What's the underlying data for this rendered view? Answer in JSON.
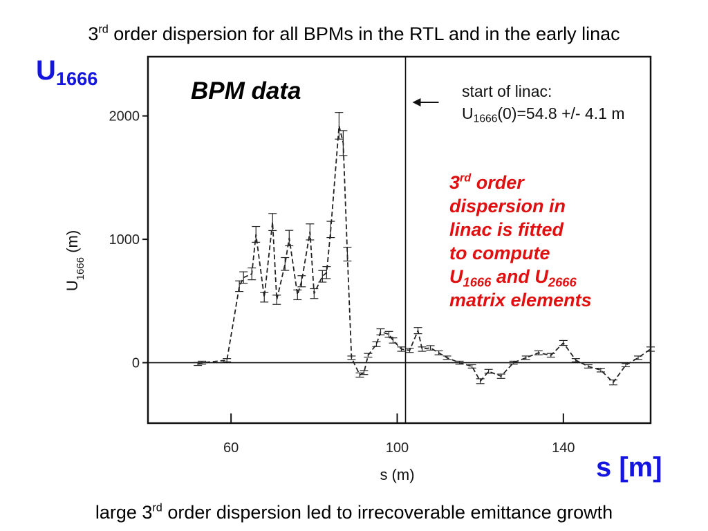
{
  "slide": {
    "title_pre": "3",
    "title_sup": "rd",
    "title_post": " order dispersion for all BPMs in the RTL and in the early linac",
    "caption_pre": "large 3",
    "caption_sup": "rd",
    "caption_post": " order dispersion led to irrecoverable emittance growth"
  },
  "labels": {
    "u_main": "U",
    "u_sub": "1666",
    "s_label": "s [m]",
    "bpm_data": "BPM data",
    "linac_note_line1": "start of linac:",
    "linac_note_u": "U",
    "linac_note_sub": "1666",
    "linac_note_rest": "(0)=54.8 +/- 4.1 m",
    "fit_line1_num": "3",
    "fit_line1_sup": "rd",
    "fit_line1_rest": " order",
    "fit_line2": "dispersion in",
    "fit_line3": "linac is fitted",
    "fit_line4": "to compute",
    "fit_line5_u1": "U",
    "fit_line5_sub1": "1666",
    "fit_line5_mid": " and U",
    "fit_line5_sub2": "2666",
    "fit_line6": "matrix elements"
  },
  "chart_data": {
    "type": "line",
    "xlabel": "s (m)",
    "ylabel_main": "U",
    "ylabel_sub": "1666",
    "ylabel_unit": " (m)",
    "xlim": [
      40,
      161
    ],
    "ylim": [
      -490,
      2480
    ],
    "x_ticks": [
      60,
      100,
      140
    ],
    "y_ticks": [
      0,
      1000,
      2000
    ],
    "x_tick_labels": [
      "60",
      "100",
      "140"
    ],
    "y_tick_labels": [
      "0",
      "1000",
      "2000"
    ],
    "vertical_marker_x": 102,
    "grid": false,
    "series": [
      {
        "style": "dashed",
        "x": [
          52,
          53,
          59,
          62,
          63,
          65,
          66,
          68,
          70,
          71,
          73,
          74,
          76,
          77,
          79,
          80,
          82,
          83,
          84,
          86,
          87,
          88,
          89,
          91,
          92,
          93,
          95,
          96,
          98,
          99,
          101,
          103,
          105,
          106,
          108,
          110,
          112,
          115,
          118,
          120,
          122,
          125,
          128,
          131,
          134,
          137,
          140,
          143,
          146,
          149,
          152,
          155,
          158,
          161
        ],
        "y": [
          -10,
          0,
          20,
          620,
          690,
          720,
          1040,
          530,
          1140,
          510,
          800,
          1010,
          550,
          660,
          1060,
          560,
          700,
          730,
          1080,
          1920,
          1780,
          880,
          40,
          -100,
          -80,
          60,
          150,
          250,
          230,
          180,
          110,
          100,
          260,
          110,
          120,
          80,
          40,
          0,
          -30,
          -150,
          -70,
          -110,
          0,
          40,
          80,
          60,
          160,
          20,
          -30,
          -60,
          -160,
          -20,
          40,
          110
        ]
      }
    ]
  },
  "colors": {
    "accent_blue": "#1515e0",
    "fit_note_red": "#e01010"
  }
}
